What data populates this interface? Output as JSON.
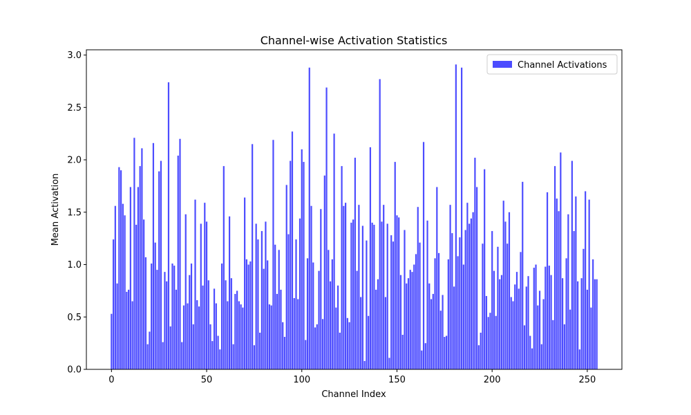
{
  "chart_data": {
    "type": "bar",
    "title": "Channel-wise Activation Statistics",
    "xlabel": "Channel Index",
    "ylabel": "Mean Activation",
    "x": [
      0,
      1,
      2,
      3,
      4,
      5,
      6,
      7,
      8,
      9,
      10,
      11,
      12,
      13,
      14,
      15,
      16,
      17,
      18,
      19,
      20,
      21,
      22,
      23,
      24,
      25,
      26,
      27,
      28,
      29,
      30,
      31,
      32,
      33,
      34,
      35,
      36,
      37,
      38,
      39,
      40,
      41,
      42,
      43,
      44,
      45,
      46,
      47,
      48,
      49,
      50,
      51,
      52,
      53,
      54,
      55,
      56,
      57,
      58,
      59,
      60,
      61,
      62,
      63,
      64,
      65,
      66,
      67,
      68,
      69,
      70,
      71,
      72,
      73,
      74,
      75,
      76,
      77,
      78,
      79,
      80,
      81,
      82,
      83,
      84,
      85,
      86,
      87,
      88,
      89,
      90,
      91,
      92,
      93,
      94,
      95,
      96,
      97,
      98,
      99,
      100,
      101,
      102,
      103,
      104,
      105,
      106,
      107,
      108,
      109,
      110,
      111,
      112,
      113,
      114,
      115,
      116,
      117,
      118,
      119,
      120,
      121,
      122,
      123,
      124,
      125,
      126,
      127,
      128,
      129,
      130,
      131,
      132,
      133,
      134,
      135,
      136,
      137,
      138,
      139,
      140,
      141,
      142,
      143,
      144,
      145,
      146,
      147,
      148,
      149,
      150,
      151,
      152,
      153,
      154,
      155,
      156,
      157,
      158,
      159,
      160,
      161,
      162,
      163,
      164,
      165,
      166,
      167,
      168,
      169,
      170,
      171,
      172,
      173,
      174,
      175,
      176,
      177,
      178,
      179,
      180,
      181,
      182,
      183,
      184,
      185,
      186,
      187,
      188,
      189,
      190,
      191,
      192,
      193,
      194,
      195,
      196,
      197,
      198,
      199,
      200,
      201,
      202,
      203,
      204,
      205,
      206,
      207,
      208,
      209,
      210,
      211,
      212,
      213,
      214,
      215,
      216,
      217,
      218,
      219,
      220,
      221,
      222,
      223,
      224,
      225,
      226,
      227,
      228,
      229,
      230,
      231,
      232,
      233,
      234,
      235,
      236,
      237,
      238,
      239,
      240,
      241,
      242,
      243,
      244,
      245,
      246,
      247,
      248,
      249,
      250,
      251,
      252,
      253,
      254,
      255
    ],
    "series": [
      {
        "name": "Channel Activations",
        "color": "#0000ff",
        "alpha": 0.7,
        "values": [
          0.53,
          1.24,
          1.56,
          0.82,
          1.93,
          1.9,
          1.58,
          1.47,
          0.74,
          0.76,
          1.74,
          0.65,
          2.21,
          1.38,
          1.74,
          1.94,
          2.11,
          1.43,
          1.07,
          0.24,
          0.36,
          1.01,
          2.16,
          1.21,
          0.95,
          1.89,
          1.99,
          0.26,
          0.93,
          0.84,
          2.74,
          0.41,
          1.01,
          0.99,
          0.76,
          2.04,
          2.2,
          0.26,
          0.61,
          1.48,
          0.63,
          0.9,
          1.01,
          0.43,
          1.62,
          0.66,
          0.6,
          1.39,
          0.8,
          1.59,
          1.41,
          0.85,
          0.43,
          0.27,
          0.77,
          0.63,
          0.32,
          0.19,
          1.01,
          1.94,
          0.85,
          0.65,
          1.46,
          0.87,
          0.24,
          0.72,
          0.75,
          0.65,
          0.62,
          0.59,
          1.64,
          1.05,
          1.0,
          1.03,
          2.15,
          0.23,
          1.39,
          1.24,
          0.35,
          1.32,
          0.96,
          1.41,
          1.04,
          0.62,
          0.61,
          2.19,
          1.19,
          0.72,
          1.14,
          0.76,
          0.45,
          0.31,
          1.76,
          1.29,
          1.99,
          2.27,
          0.68,
          1.24,
          0.67,
          1.44,
          2.1,
          1.98,
          0.28,
          1.06,
          2.88,
          1.56,
          1.02,
          0.4,
          0.43,
          0.94,
          1.53,
          0.48,
          1.85,
          2.69,
          1.14,
          0.84,
          1.05,
          2.25,
          0.59,
          0.8,
          0.35,
          1.94,
          1.56,
          1.59,
          0.49,
          0.45,
          1.4,
          1.43,
          2.02,
          0.94,
          1.57,
          0.69,
          1.37,
          0.08,
          1.23,
          0.51,
          2.12,
          1.4,
          1.38,
          0.76,
          0.86,
          2.77,
          1.41,
          1.57,
          0.69,
          1.39,
          0.11,
          1.28,
          1.22,
          1.98,
          1.47,
          1.45,
          0.9,
          0.33,
          1.33,
          0.82,
          0.87,
          0.95,
          0.93,
          1.0,
          1.1,
          1.55,
          1.21,
          0.18,
          2.17,
          0.25,
          1.42,
          0.82,
          0.67,
          0.72,
          1.06,
          1.74,
          1.11,
          0.56,
          0.71,
          0.31,
          0.32,
          1.05,
          1.57,
          1.3,
          0.79,
          2.91,
          1.08,
          1.26,
          2.88,
          1.0,
          1.33,
          1.59,
          1.39,
          1.44,
          1.5,
          2.02,
          1.74,
          0.23,
          0.35,
          1.2,
          1.91,
          0.7,
          0.5,
          0.54,
          1.32,
          0.94,
          0.51,
          1.17,
          0.86,
          0.9,
          1.61,
          1.41,
          1.2,
          1.5,
          0.69,
          0.65,
          0.81,
          0.93,
          0.77,
          1.12,
          1.79,
          0.42,
          0.79,
          0.89,
          0.32,
          0.2,
          0.97,
          1.0,
          0.61,
          0.75,
          0.24,
          0.67,
          0.98,
          1.69,
          0.99,
          0.9,
          0.47,
          1.94,
          1.63,
          1.51,
          2.07,
          0.87,
          0.43,
          1.06,
          1.48,
          0.57,
          1.99,
          1.32,
          1.65,
          0.84,
          0.19,
          0.87,
          1.15,
          1.7,
          0.76,
          1.62,
          0.59,
          1.05,
          0.86,
          0.86
        ]
      }
    ],
    "xlim": [
      -13.19,
      268.19
    ],
    "xticks": [
      0,
      50,
      100,
      150,
      200,
      250
    ],
    "ylim": [
      0,
      3.05
    ],
    "yticks": [
      {
        "value": 0,
        "label": "0.0"
      },
      0.5,
      {
        "value": 1,
        "label": "1.0"
      },
      1.5,
      {
        "value": 2,
        "label": "2.0"
      },
      2.5,
      {
        "value": 3,
        "label": "3.0"
      }
    ],
    "bar_width": 0.8,
    "legend": "upper right"
  }
}
